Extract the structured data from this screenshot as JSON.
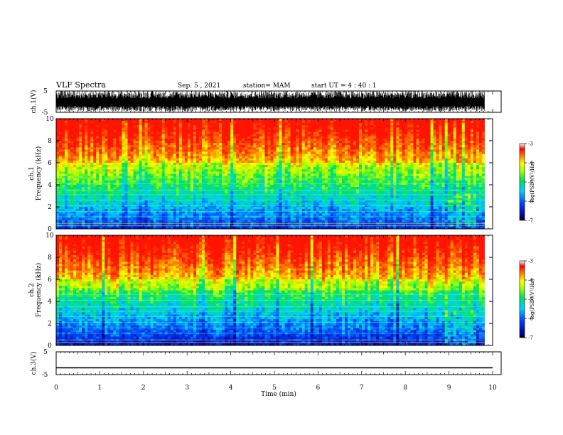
{
  "header": {
    "title": "VLF Spectra",
    "date": "Sep. 5 , 2021",
    "station": "station= MAM",
    "start": "start  UT =   4 : 40 : 1"
  },
  "chart_data": {
    "type": "heatmap",
    "xlabel": "Time  (min)",
    "xlim": [
      0,
      10
    ],
    "xticks": [
      "0",
      "1",
      "2",
      "3",
      "4",
      "5",
      "6",
      "7",
      "8",
      "9",
      "10"
    ],
    "panels": [
      {
        "id": "waveform-ch1",
        "ylabel": "ch.1(V)",
        "ylim": [
          -5,
          5
        ],
        "yticks": [
          "5",
          "-5"
        ],
        "signal": "dense noise, mostly between -2 and 5 V"
      },
      {
        "id": "spectrogram-ch1",
        "ylabel_top": "ch.1",
        "ylabel": "Frequency  (kHz)",
        "ylim": [
          0,
          10
        ],
        "yticks": [
          "0",
          "2",
          "4",
          "6",
          "8",
          "10"
        ],
        "zlim": [
          -7,
          -3
        ],
        "colorbar_ticks": [
          "-3",
          "-4",
          "-5",
          "-6",
          "-7"
        ],
        "colorbar_label": "log(PSD)(V²/Hz)"
      },
      {
        "id": "spectrogram-ch2",
        "ylabel_top": "ch.2",
        "ylabel": "Frequency  (kHz)",
        "ylim": [
          0,
          10
        ],
        "yticks": [
          "0",
          "2",
          "4",
          "6",
          "8",
          "10"
        ],
        "zlim": [
          -7,
          -3
        ],
        "colorbar_ticks": [
          "-3",
          "-4",
          "-5",
          "-6",
          "-7"
        ],
        "colorbar_label": "log(PSD)(V²/Hz)"
      },
      {
        "id": "waveform-ch3",
        "ylabel": "ch.3(V)",
        "ylim": [
          -5,
          5
        ],
        "yticks": [
          "5",
          "-5"
        ],
        "signal": "flat line at about -2 V"
      }
    ],
    "colors": {
      "high": "#ff2a00",
      "mid": "#00e060",
      "low": "#0010c0"
    }
  }
}
